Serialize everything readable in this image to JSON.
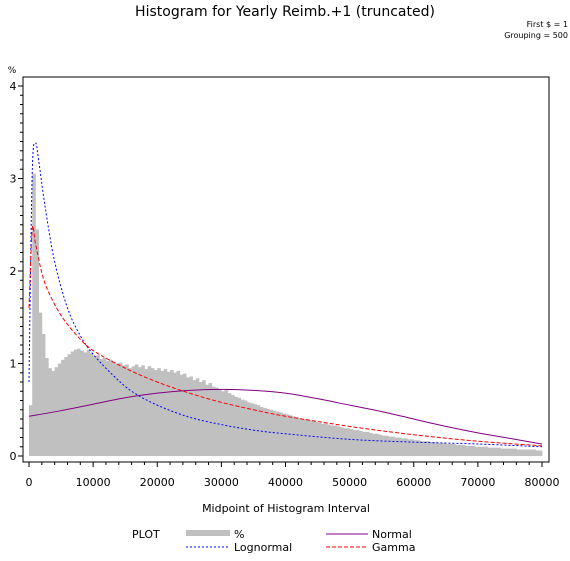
{
  "chart_data": {
    "type": "histogram",
    "title": "Histogram for Yearly Reimb.+1 (truncated)",
    "notes": [
      "First $ = 1",
      "Grouping = 500"
    ],
    "xlabel": "Midpoint of Histogram Interval",
    "ylabel": "%",
    "xlim": [
      0,
      80000
    ],
    "ylim": [
      0,
      4
    ],
    "xticks": [
      0,
      10000,
      20000,
      30000,
      40000,
      50000,
      60000,
      70000,
      80000
    ],
    "xtick_labels": [
      "0",
      "10000",
      "20000",
      "30000",
      "40000",
      "50000",
      "60000",
      "70000",
      "80000"
    ],
    "yticks": [
      0,
      1,
      2,
      3,
      4
    ],
    "ytick_labels": [
      "0",
      "1",
      "2",
      "3",
      "4"
    ],
    "bin_width": 500,
    "histogram": {
      "name": "%",
      "color": "#c0c0c0",
      "bins": [
        [
          250,
          0.55
        ],
        [
          750,
          3.05
        ],
        [
          1250,
          2.45
        ],
        [
          1750,
          1.55
        ],
        [
          2250,
          1.32
        ],
        [
          2750,
          1.06
        ],
        [
          3250,
          0.95
        ],
        [
          3750,
          0.92
        ],
        [
          4250,
          0.96
        ],
        [
          4750,
          1.0
        ],
        [
          5250,
          1.04
        ],
        [
          5750,
          1.07
        ],
        [
          6250,
          1.1
        ],
        [
          6750,
          1.13
        ],
        [
          7250,
          1.15
        ],
        [
          7750,
          1.16
        ],
        [
          8250,
          1.14
        ],
        [
          8750,
          1.12
        ],
        [
          9250,
          1.15
        ],
        [
          9750,
          1.11
        ],
        [
          10250,
          1.08
        ],
        [
          10750,
          1.09
        ],
        [
          11250,
          1.05
        ],
        [
          11750,
          1.06
        ],
        [
          12250,
          1.03
        ],
        [
          12750,
          1.04
        ],
        [
          13250,
          1.02
        ],
        [
          13750,
          1.0
        ],
        [
          14250,
          1.01
        ],
        [
          14750,
          0.98
        ],
        [
          15250,
          0.99
        ],
        [
          15750,
          0.95
        ],
        [
          16250,
          0.97
        ],
        [
          16750,
          0.99
        ],
        [
          17250,
          0.96
        ],
        [
          17750,
          0.98
        ],
        [
          18250,
          0.94
        ],
        [
          18750,
          0.97
        ],
        [
          19250,
          0.95
        ],
        [
          19750,
          0.93
        ],
        [
          20250,
          0.95
        ],
        [
          20750,
          0.92
        ],
        [
          21250,
          0.94
        ],
        [
          21750,
          0.91
        ],
        [
          22250,
          0.93
        ],
        [
          22750,
          0.9
        ],
        [
          23250,
          0.92
        ],
        [
          23750,
          0.88
        ],
        [
          24250,
          0.89
        ],
        [
          24750,
          0.85
        ],
        [
          25250,
          0.86
        ],
        [
          25750,
          0.82
        ],
        [
          26250,
          0.84
        ],
        [
          26750,
          0.8
        ],
        [
          27250,
          0.82
        ],
        [
          27750,
          0.77
        ],
        [
          28250,
          0.79
        ],
        [
          28750,
          0.75
        ],
        [
          29250,
          0.74
        ],
        [
          29750,
          0.72
        ],
        [
          30250,
          0.7
        ],
        [
          30750,
          0.72
        ],
        [
          31250,
          0.68
        ],
        [
          31750,
          0.66
        ],
        [
          32250,
          0.64
        ],
        [
          32750,
          0.63
        ],
        [
          33250,
          0.61
        ],
        [
          33750,
          0.6
        ],
        [
          34250,
          0.58
        ],
        [
          34750,
          0.57
        ],
        [
          35250,
          0.56
        ],
        [
          35750,
          0.55
        ],
        [
          36250,
          0.53
        ],
        [
          36750,
          0.52
        ],
        [
          37250,
          0.51
        ],
        [
          37750,
          0.5
        ],
        [
          38250,
          0.49
        ],
        [
          38750,
          0.48
        ],
        [
          39250,
          0.47
        ],
        [
          39750,
          0.46
        ],
        [
          40250,
          0.45
        ],
        [
          40750,
          0.44
        ],
        [
          41250,
          0.43
        ],
        [
          41750,
          0.42
        ],
        [
          42250,
          0.41
        ],
        [
          42750,
          0.4
        ],
        [
          43250,
          0.4
        ],
        [
          43750,
          0.39
        ],
        [
          44250,
          0.38
        ],
        [
          44750,
          0.37
        ],
        [
          45250,
          0.36
        ],
        [
          45750,
          0.35
        ],
        [
          46250,
          0.35
        ],
        [
          46750,
          0.34
        ],
        [
          47250,
          0.33
        ],
        [
          47750,
          0.33
        ],
        [
          48250,
          0.32
        ],
        [
          48750,
          0.31
        ],
        [
          49250,
          0.3
        ],
        [
          49750,
          0.3
        ],
        [
          50250,
          0.29
        ],
        [
          50750,
          0.28
        ],
        [
          51250,
          0.28
        ],
        [
          51750,
          0.27
        ],
        [
          52250,
          0.26
        ],
        [
          52750,
          0.26
        ],
        [
          53250,
          0.25
        ],
        [
          53750,
          0.24
        ],
        [
          54250,
          0.24
        ],
        [
          54750,
          0.23
        ],
        [
          55250,
          0.22
        ],
        [
          55750,
          0.22
        ],
        [
          56250,
          0.21
        ],
        [
          56750,
          0.21
        ],
        [
          57250,
          0.2
        ],
        [
          57750,
          0.2
        ],
        [
          58250,
          0.19
        ],
        [
          58750,
          0.19
        ],
        [
          59250,
          0.18
        ],
        [
          59750,
          0.18
        ],
        [
          60250,
          0.17
        ],
        [
          60750,
          0.17
        ],
        [
          61250,
          0.16
        ],
        [
          61750,
          0.16
        ],
        [
          62250,
          0.16
        ],
        [
          62750,
          0.15
        ],
        [
          63250,
          0.15
        ],
        [
          63750,
          0.14
        ],
        [
          64250,
          0.14
        ],
        [
          64750,
          0.14
        ],
        [
          65250,
          0.13
        ],
        [
          65750,
          0.13
        ],
        [
          66250,
          0.13
        ],
        [
          66750,
          0.12
        ],
        [
          67250,
          0.12
        ],
        [
          67750,
          0.12
        ],
        [
          68250,
          0.11
        ],
        [
          68750,
          0.11
        ],
        [
          69250,
          0.11
        ],
        [
          69750,
          0.1
        ],
        [
          70250,
          0.1
        ],
        [
          70750,
          0.1
        ],
        [
          71250,
          0.1
        ],
        [
          71750,
          0.09
        ],
        [
          72250,
          0.09
        ],
        [
          72750,
          0.09
        ],
        [
          73250,
          0.09
        ],
        [
          73750,
          0.08
        ],
        [
          74250,
          0.08
        ],
        [
          74750,
          0.08
        ],
        [
          75250,
          0.08
        ],
        [
          75750,
          0.08
        ],
        [
          76250,
          0.07
        ],
        [
          76750,
          0.07
        ],
        [
          77250,
          0.07
        ],
        [
          77750,
          0.07
        ],
        [
          78250,
          0.07
        ],
        [
          78750,
          0.07
        ],
        [
          79250,
          0.06
        ],
        [
          79750,
          0.06
        ]
      ]
    },
    "series": [
      {
        "name": "Normal",
        "color": "#800080",
        "style": "solid",
        "x": [
          0,
          5000,
          10000,
          15000,
          20000,
          25000,
          30000,
          35000,
          40000,
          45000,
          50000,
          55000,
          60000,
          65000,
          70000,
          75000,
          80000
        ],
        "y": [
          0.43,
          0.49,
          0.56,
          0.63,
          0.68,
          0.71,
          0.72,
          0.71,
          0.68,
          0.62,
          0.55,
          0.48,
          0.4,
          0.32,
          0.25,
          0.19,
          0.13
        ]
      },
      {
        "name": "Lognormal",
        "color": "#0000ff",
        "style": "dashed",
        "x": [
          0,
          500,
          1000,
          1500,
          2500,
          4000,
          6000,
          8000,
          10000,
          13000,
          16000,
          20000,
          25000,
          30000,
          35000,
          40000,
          50000,
          60000,
          70000,
          80000
        ],
        "y": [
          0.8,
          3.05,
          3.38,
          3.2,
          2.7,
          2.1,
          1.6,
          1.3,
          1.1,
          0.88,
          0.7,
          0.55,
          0.42,
          0.34,
          0.28,
          0.24,
          0.18,
          0.15,
          0.13,
          0.1
        ]
      },
      {
        "name": "Gamma",
        "color": "#ff0000",
        "style": "dashed",
        "x": [
          0,
          500,
          1000,
          2000,
          3000,
          5000,
          7500,
          10000,
          15000,
          20000,
          25000,
          30000,
          35000,
          40000,
          50000,
          60000,
          70000,
          80000
        ],
        "y": [
          1.6,
          2.45,
          2.3,
          1.98,
          1.78,
          1.52,
          1.3,
          1.14,
          0.95,
          0.8,
          0.68,
          0.58,
          0.5,
          0.43,
          0.32,
          0.23,
          0.16,
          0.11
        ]
      }
    ],
    "legend": {
      "title": "PLOT",
      "placement": "bottom",
      "entries": [
        {
          "label": "%",
          "kind": "bar",
          "color": "#c0c0c0"
        },
        {
          "label": "Normal",
          "kind": "line",
          "color": "#800080",
          "style": "solid"
        },
        {
          "label": "Lognormal",
          "kind": "line",
          "color": "#0000ff",
          "style": "dashed"
        },
        {
          "label": "Gamma",
          "kind": "line",
          "color": "#ff0000",
          "style": "dashed"
        }
      ]
    }
  }
}
